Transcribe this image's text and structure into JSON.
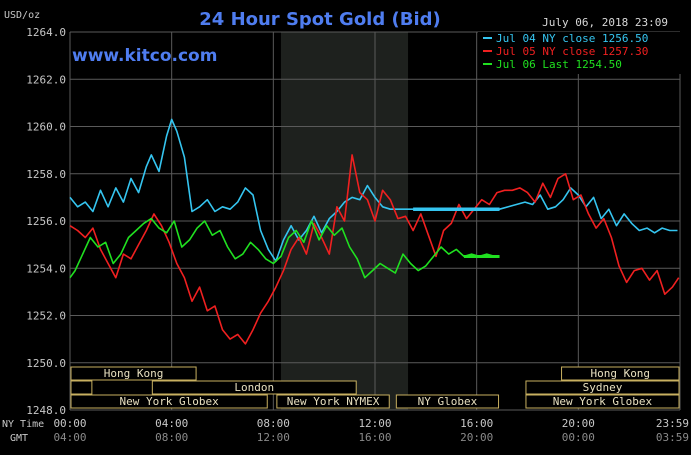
{
  "chart_data": {
    "type": "line",
    "title": "24 Hour Spot Gold (Bid)",
    "website": "www.kitco.com",
    "unit_label": "USD/oz",
    "timestamp": "July 06, 2018 23:09",
    "ylim": [
      1248,
      1264
    ],
    "y_ticks": [
      "1264.0",
      "1262.0",
      "1260.0",
      "1258.0",
      "1256.0",
      "1254.0",
      "1252.0",
      "1250.0",
      "1248.0"
    ],
    "x_range_hours": [
      0,
      24
    ],
    "x_row_labels": [
      "NY Time",
      "GMT"
    ],
    "x_ticks_ny": [
      "00:00",
      "04:00",
      "08:00",
      "12:00",
      "16:00",
      "20:00",
      "23:59"
    ],
    "x_ticks_gmt": [
      "04:00",
      "08:00",
      "12:00",
      "16:00",
      "20:00",
      "00:00",
      "03:59"
    ],
    "shaded_range_hours": [
      8.3,
      13.3
    ],
    "colors": {
      "background": "#000000",
      "grid": "#5a5a5a",
      "shaded": "#1e211e",
      "title": "#4f7df0",
      "session_border": "#c8b060"
    },
    "legend_position": "top-right",
    "legend": [
      {
        "label": "Jul 04 NY close 1256.50",
        "color": "#35c5f0"
      },
      {
        "label": "Jul 05 NY close 1257.30",
        "color": "#f02020"
      },
      {
        "label": "Jul 06 Last 1254.50",
        "color": "#20e020"
      }
    ],
    "sessions": [
      {
        "name": "Hong Kong",
        "row": 0,
        "start": 0,
        "end": 5.0
      },
      {
        "name": "Hong Kong",
        "row": 0,
        "start": 19.3,
        "end": 24
      },
      {
        "name": "London",
        "row": 1,
        "start": 3.2,
        "end": 11.3
      },
      {
        "name": "",
        "row": 1,
        "start": 0,
        "end": 0.9
      },
      {
        "name": "Sydney",
        "row": 1,
        "start": 17.9,
        "end": 24
      },
      {
        "name": "New York Globex",
        "row": 2,
        "start": 0,
        "end": 7.8
      },
      {
        "name": "New York NYMEX",
        "row": 2,
        "start": 8.1,
        "end": 12.6
      },
      {
        "name": "NY Globex",
        "row": 2,
        "start": 12.8,
        "end": 16.9
      },
      {
        "name": "New York Globex",
        "row": 2,
        "start": 17.9,
        "end": 24
      }
    ],
    "series": [
      {
        "name": "Jul 04 NY close 1256.50",
        "color": "#35c5f0",
        "x": [
          0,
          0.3,
          0.6,
          0.9,
          1.2,
          1.5,
          1.8,
          2.1,
          2.4,
          2.7,
          3.0,
          3.2,
          3.5,
          3.8,
          4.0,
          4.2,
          4.5,
          4.8,
          5.1,
          5.4,
          5.7,
          6.0,
          6.3,
          6.6,
          6.9,
          7.2,
          7.5,
          7.8,
          8.1,
          8.4,
          8.7,
          9.0,
          9.3,
          9.6,
          9.9,
          10.2,
          10.5,
          10.8,
          11.1,
          11.4,
          11.7,
          12.0,
          12.3,
          12.6,
          12.9,
          13.2,
          13.5,
          16.9,
          17.9,
          18.2,
          18.5,
          18.8,
          19.1,
          19.4,
          19.7,
          20.0,
          20.3,
          20.6,
          20.9,
          21.2,
          21.5,
          21.8,
          22.1,
          22.4,
          22.7,
          23.0,
          23.3,
          23.6,
          23.9
        ],
        "y": [
          1257.0,
          1256.6,
          1256.8,
          1256.4,
          1257.3,
          1256.6,
          1257.4,
          1256.8,
          1257.8,
          1257.2,
          1258.3,
          1258.8,
          1258.1,
          1259.6,
          1260.3,
          1259.8,
          1258.7,
          1256.4,
          1256.6,
          1256.9,
          1256.4,
          1256.6,
          1256.5,
          1256.8,
          1257.4,
          1257.1,
          1255.6,
          1254.8,
          1254.3,
          1255.2,
          1255.8,
          1255.2,
          1255.6,
          1256.2,
          1255.5,
          1256.1,
          1256.4,
          1256.8,
          1257.0,
          1256.9,
          1257.5,
          1257.0,
          1256.6,
          1256.5,
          1256.5,
          1256.5,
          1256.5,
          1256.5,
          1256.8,
          1256.7,
          1257.1,
          1256.5,
          1256.6,
          1256.9,
          1257.4,
          1257.1,
          1256.6,
          1257.0,
          1256.1,
          1256.5,
          1255.8,
          1256.3,
          1255.9,
          1255.6,
          1255.7,
          1255.5,
          1255.7,
          1255.6,
          1255.6
        ]
      },
      {
        "name": "Jul 05 NY close 1257.30",
        "color": "#f02020",
        "x": [
          0,
          0.3,
          0.6,
          0.9,
          1.2,
          1.5,
          1.8,
          2.1,
          2.4,
          2.7,
          3.0,
          3.3,
          3.6,
          3.9,
          4.2,
          4.5,
          4.8,
          5.1,
          5.4,
          5.7,
          6.0,
          6.3,
          6.6,
          6.9,
          7.2,
          7.5,
          7.8,
          8.1,
          8.4,
          8.7,
          9.0,
          9.3,
          9.6,
          9.9,
          10.2,
          10.5,
          10.8,
          11.1,
          11.4,
          11.7,
          12.0,
          12.3,
          12.6,
          12.9,
          13.2,
          13.5,
          13.8,
          14.1,
          14.4,
          14.7,
          15.0,
          15.3,
          15.6,
          15.9,
          16.2,
          16.5,
          16.8,
          17.1,
          17.4,
          17.7,
          18.0,
          18.3,
          18.6,
          18.9,
          19.2,
          19.5,
          19.8,
          20.1,
          20.4,
          20.7,
          21.0,
          21.3,
          21.6,
          21.9,
          22.2,
          22.5,
          22.8,
          23.1,
          23.4,
          23.7,
          23.95
        ],
        "y": [
          1255.8,
          1255.6,
          1255.3,
          1255.7,
          1254.8,
          1254.2,
          1253.6,
          1254.6,
          1254.4,
          1255.0,
          1255.6,
          1256.3,
          1255.8,
          1255.1,
          1254.2,
          1253.6,
          1252.6,
          1253.2,
          1252.2,
          1252.4,
          1251.4,
          1251.0,
          1251.2,
          1250.8,
          1251.4,
          1252.1,
          1252.6,
          1253.2,
          1253.9,
          1254.8,
          1255.3,
          1254.6,
          1255.9,
          1255.3,
          1254.6,
          1256.6,
          1256.0,
          1258.8,
          1257.2,
          1256.9,
          1256.0,
          1257.3,
          1256.9,
          1256.1,
          1256.2,
          1255.6,
          1256.3,
          1255.4,
          1254.5,
          1255.6,
          1255.9,
          1256.7,
          1256.1,
          1256.5,
          1256.9,
          1256.7,
          1257.2,
          1257.3,
          1257.3,
          1257.4,
          1257.2,
          1256.8,
          1257.6,
          1257.0,
          1257.8,
          1258.0,
          1256.9,
          1257.1,
          1256.3,
          1255.7,
          1256.1,
          1255.3,
          1254.1,
          1253.4,
          1253.9,
          1254.0,
          1253.5,
          1253.9,
          1252.9,
          1253.2,
          1253.6
        ]
      },
      {
        "name": "Jul 06 Last 1254.50",
        "color": "#20e020",
        "x": [
          0,
          0.2,
          0.5,
          0.8,
          1.1,
          1.4,
          1.7,
          2.0,
          2.3,
          2.6,
          2.9,
          3.2,
          3.5,
          3.8,
          4.1,
          4.4,
          4.7,
          5.0,
          5.3,
          5.6,
          5.9,
          6.2,
          6.5,
          6.8,
          7.1,
          7.4,
          7.7,
          8.0,
          8.3,
          8.6,
          8.9,
          9.2,
          9.5,
          9.8,
          10.1,
          10.4,
          10.7,
          11.0,
          11.3,
          11.6,
          11.9,
          12.2,
          12.5,
          12.8,
          13.1,
          13.4,
          13.7,
          14.0,
          14.3,
          14.6,
          14.9,
          15.2,
          15.5,
          15.8,
          16.1,
          16.4,
          16.7,
          16.9
        ],
        "y": [
          1253.6,
          1253.9,
          1254.6,
          1255.3,
          1254.9,
          1255.1,
          1254.2,
          1254.6,
          1255.3,
          1255.6,
          1255.9,
          1256.1,
          1255.7,
          1255.5,
          1256.0,
          1254.9,
          1255.2,
          1255.7,
          1256.0,
          1255.4,
          1255.6,
          1254.9,
          1254.4,
          1254.6,
          1255.1,
          1254.8,
          1254.4,
          1254.2,
          1254.5,
          1255.3,
          1255.6,
          1255.1,
          1256.0,
          1255.2,
          1255.8,
          1255.4,
          1255.7,
          1254.9,
          1254.4,
          1253.6,
          1253.9,
          1254.2,
          1254.0,
          1253.8,
          1254.6,
          1254.2,
          1253.9,
          1254.1,
          1254.5,
          1254.9,
          1254.6,
          1254.8,
          1254.5,
          1254.6,
          1254.5,
          1254.6,
          1254.5,
          1254.5
        ]
      }
    ]
  }
}
